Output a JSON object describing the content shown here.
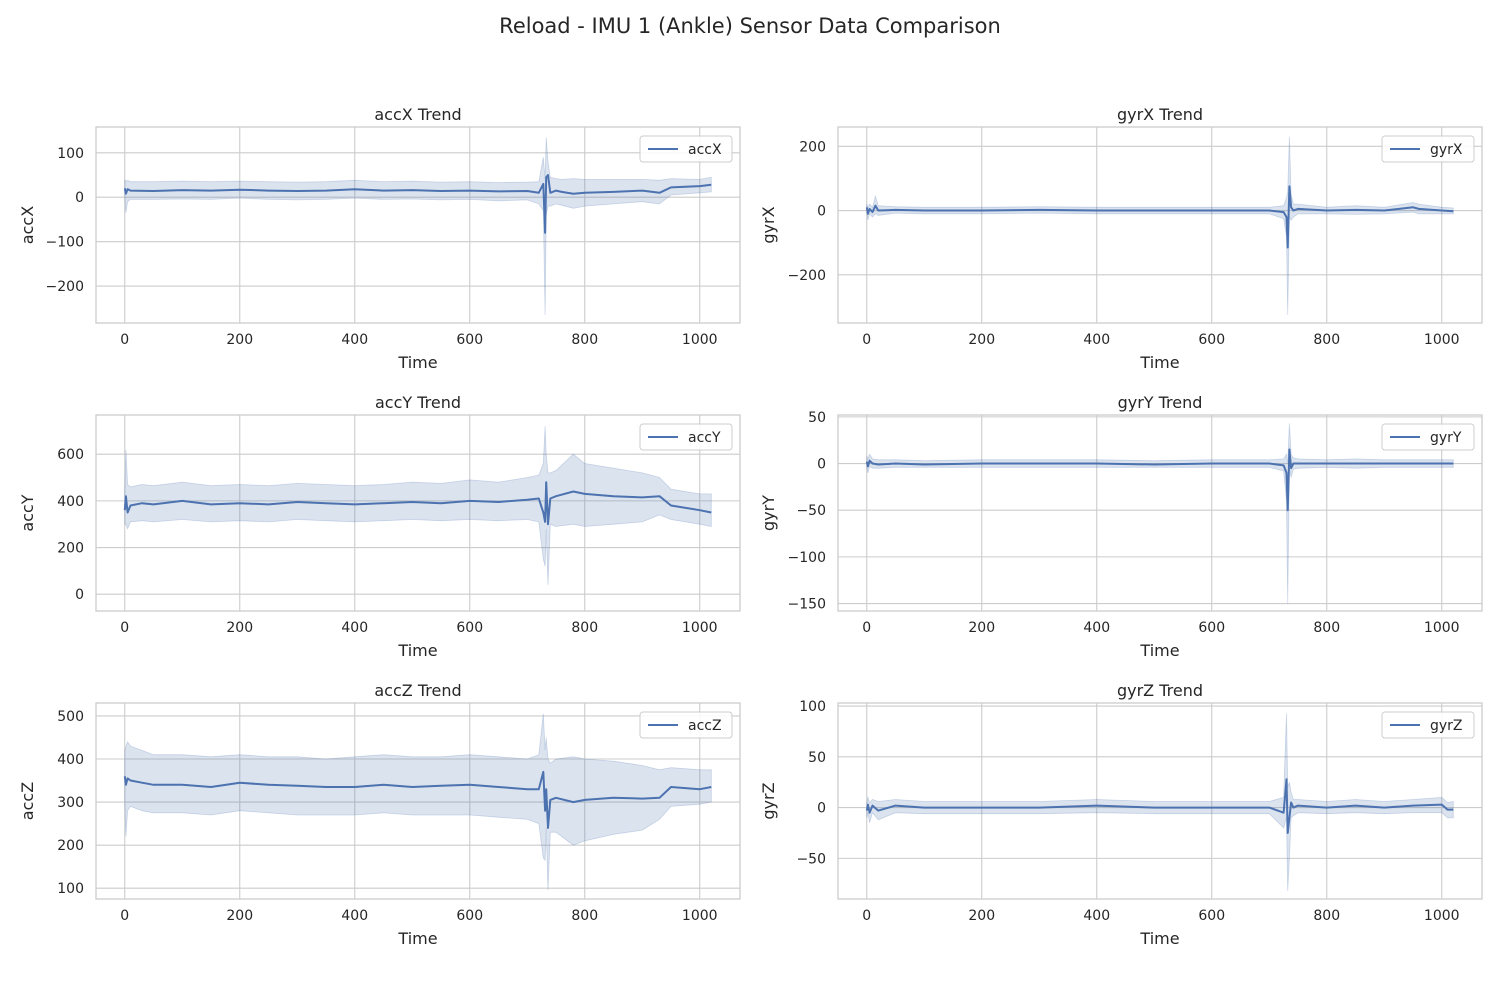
{
  "suptitle": "Reload - IMU 1 (Ankle) Sensor Data Comparison",
  "colors": {
    "line": "#4c72b0",
    "band": "#4c72b0",
    "grid": "#cccccc",
    "axes_edge": "#cccccc",
    "text": "#262626"
  },
  "chart_data": [
    {
      "type": "line",
      "title": "accX Trend",
      "xlabel": "Time",
      "ylabel": "accX",
      "legend": {
        "label": "accX",
        "position": "top-right"
      },
      "xlim": [
        -50,
        1070
      ],
      "ylim": [
        -283,
        158
      ],
      "xticks": [
        0,
        200,
        400,
        600,
        800,
        1000
      ],
      "xtick_labels": [
        "0",
        "200",
        "400",
        "600",
        "800",
        "1000"
      ],
      "yticks": [
        -200,
        -100,
        0,
        100
      ],
      "ytick_labels": [
        "−200",
        "−100",
        "0",
        "100"
      ],
      "grid": true,
      "series": [
        {
          "x": [
            0,
            2,
            5,
            10,
            50,
            100,
            150,
            200,
            250,
            300,
            350,
            400,
            450,
            500,
            550,
            600,
            650,
            700,
            720,
            728,
            731,
            733,
            736,
            740,
            750,
            760,
            780,
            800,
            850,
            900,
            930,
            950,
            1000,
            1020
          ],
          "mean": [
            20,
            8,
            18,
            15,
            14,
            16,
            15,
            17,
            15,
            14,
            15,
            18,
            15,
            16,
            14,
            15,
            13,
            14,
            10,
            30,
            -80,
            45,
            50,
            10,
            15,
            12,
            8,
            10,
            12,
            15,
            10,
            22,
            25,
            28
          ],
          "upper": [
            40,
            35,
            38,
            35,
            35,
            36,
            35,
            36,
            35,
            34,
            35,
            38,
            35,
            36,
            34,
            35,
            33,
            34,
            35,
            90,
            40,
            135,
            80,
            45,
            42,
            40,
            42,
            40,
            40,
            40,
            38,
            42,
            40,
            45
          ],
          "lower": [
            0,
            -35,
            -10,
            -5,
            -5,
            -4,
            -5,
            -2,
            -5,
            -6,
            -5,
            -2,
            -5,
            -4,
            -6,
            -5,
            -8,
            -6,
            -15,
            -30,
            -265,
            -40,
            -20,
            -20,
            -15,
            -18,
            -25,
            -20,
            -15,
            -10,
            -15,
            5,
            10,
            12
          ]
        }
      ]
    },
    {
      "type": "line",
      "title": "gyrX Trend",
      "xlabel": "Time",
      "ylabel": "gyrX",
      "legend": {
        "label": "gyrX",
        "position": "top-right"
      },
      "xlim": [
        -50,
        1070
      ],
      "ylim": [
        -350,
        260
      ],
      "xticks": [
        0,
        200,
        400,
        600,
        800,
        1000
      ],
      "xtick_labels": [
        "0",
        "200",
        "400",
        "600",
        "800",
        "1000"
      ],
      "yticks": [
        -200,
        0,
        200
      ],
      "ytick_labels": [
        "−200",
        "0",
        "200"
      ],
      "grid": true,
      "series": [
        {
          "x": [
            0,
            2,
            5,
            10,
            15,
            20,
            50,
            100,
            200,
            300,
            400,
            500,
            600,
            700,
            725,
            730,
            732,
            735,
            738,
            742,
            750,
            800,
            850,
            900,
            950,
            960,
            1000,
            1020
          ],
          "mean": [
            10,
            -10,
            5,
            -5,
            15,
            0,
            2,
            0,
            0,
            2,
            0,
            0,
            0,
            0,
            -5,
            -20,
            -115,
            75,
            10,
            0,
            5,
            0,
            2,
            0,
            10,
            5,
            0,
            -2
          ],
          "upper": [
            20,
            10,
            20,
            10,
            45,
            15,
            12,
            10,
            10,
            12,
            10,
            10,
            10,
            10,
            15,
            40,
            60,
            230,
            50,
            20,
            20,
            10,
            15,
            10,
            25,
            20,
            10,
            8
          ],
          "lower": [
            0,
            -30,
            -10,
            -20,
            -10,
            -15,
            -8,
            -10,
            -10,
            -8,
            -10,
            -10,
            -10,
            -10,
            -25,
            -80,
            -325,
            -20,
            -30,
            -20,
            -10,
            -10,
            -12,
            -10,
            -5,
            -10,
            -10,
            -10
          ]
        }
      ]
    },
    {
      "type": "line",
      "title": "accY Trend",
      "xlabel": "Time",
      "ylabel": "accY",
      "legend": {
        "label": "accY",
        "position": "top-right"
      },
      "xlim": [
        -50,
        1070
      ],
      "ylim": [
        -72,
        768
      ],
      "xticks": [
        0,
        200,
        400,
        600,
        800,
        1000
      ],
      "xtick_labels": [
        "0",
        "200",
        "400",
        "600",
        "800",
        "1000"
      ],
      "yticks": [
        0,
        200,
        400,
        600
      ],
      "ytick_labels": [
        "0",
        "200",
        "400",
        "600"
      ],
      "grid": true,
      "series": [
        {
          "x": [
            0,
            2,
            5,
            10,
            30,
            50,
            100,
            150,
            200,
            250,
            300,
            350,
            400,
            450,
            500,
            550,
            600,
            650,
            700,
            720,
            728,
            731,
            733,
            736,
            740,
            750,
            780,
            800,
            850,
            900,
            930,
            950,
            1000,
            1020
          ],
          "mean": [
            360,
            420,
            350,
            380,
            390,
            385,
            400,
            385,
            390,
            385,
            395,
            390,
            385,
            390,
            395,
            390,
            400,
            395,
            405,
            410,
            350,
            310,
            480,
            300,
            410,
            420,
            440,
            430,
            420,
            415,
            420,
            380,
            360,
            350
          ],
          "upper": [
            450,
            620,
            470,
            460,
            470,
            465,
            480,
            465,
            470,
            465,
            475,
            470,
            465,
            470,
            480,
            475,
            490,
            480,
            500,
            510,
            560,
            720,
            600,
            520,
            520,
            530,
            600,
            560,
            540,
            520,
            500,
            450,
            430,
            430
          ],
          "lower": [
            300,
            300,
            280,
            310,
            315,
            310,
            320,
            310,
            315,
            310,
            320,
            315,
            310,
            315,
            320,
            315,
            320,
            315,
            320,
            310,
            150,
            120,
            280,
            40,
            300,
            290,
            300,
            290,
            300,
            310,
            340,
            320,
            300,
            290
          ]
        }
      ]
    },
    {
      "type": "line",
      "title": "gyrY Trend",
      "xlabel": "Time",
      "ylabel": "gyrY",
      "legend": {
        "label": "gyrY",
        "position": "top-right"
      },
      "xlim": [
        -50,
        1070
      ],
      "ylim": [
        -158,
        52
      ],
      "xticks": [
        0,
        200,
        400,
        600,
        800,
        1000
      ],
      "xtick_labels": [
        "0",
        "200",
        "400",
        "600",
        "800",
        "1000"
      ],
      "yticks": [
        -150,
        -100,
        -50,
        0,
        50
      ],
      "ytick_labels": [
        "−150",
        "−100",
        "−50",
        "0",
        "50"
      ],
      "grid": true,
      "series": [
        {
          "x": [
            0,
            2,
            5,
            10,
            20,
            50,
            100,
            200,
            300,
            400,
            500,
            600,
            700,
            725,
            730,
            732,
            735,
            738,
            742,
            750,
            800,
            850,
            900,
            1000,
            1020
          ],
          "mean": [
            2,
            -3,
            3,
            0,
            -1,
            0,
            -1,
            0,
            0,
            0,
            -1,
            0,
            0,
            -2,
            -10,
            -50,
            15,
            -5,
            0,
            0,
            0,
            0,
            0,
            0,
            0
          ],
          "upper": [
            8,
            5,
            10,
            5,
            4,
            4,
            3,
            4,
            4,
            4,
            3,
            4,
            4,
            5,
            10,
            0,
            43,
            10,
            6,
            5,
            4,
            5,
            4,
            4,
            4
          ],
          "lower": [
            -4,
            -10,
            -3,
            -5,
            -5,
            -4,
            -4,
            -4,
            -4,
            -4,
            -4,
            -4,
            -4,
            -8,
            -40,
            -150,
            -5,
            -15,
            -6,
            -5,
            -4,
            -5,
            -4,
            -4,
            -4
          ]
        }
      ]
    },
    {
      "type": "line",
      "title": "accZ Trend",
      "xlabel": "Time",
      "ylabel": "accZ",
      "legend": {
        "label": "accZ",
        "position": "top-right"
      },
      "xlim": [
        -50,
        1070
      ],
      "ylim": [
        75,
        530
      ],
      "xticks": [
        0,
        200,
        400,
        600,
        800,
        1000
      ],
      "xtick_labels": [
        "0",
        "200",
        "400",
        "600",
        "800",
        "1000"
      ],
      "yticks": [
        100,
        200,
        300,
        400,
        500
      ],
      "ytick_labels": [
        "100",
        "200",
        "300",
        "400",
        "500"
      ],
      "grid": true,
      "series": [
        {
          "x": [
            0,
            2,
            5,
            10,
            30,
            50,
            100,
            150,
            200,
            250,
            300,
            350,
            400,
            450,
            500,
            550,
            600,
            650,
            700,
            720,
            728,
            731,
            733,
            736,
            740,
            750,
            780,
            800,
            850,
            900,
            930,
            950,
            1000,
            1020
          ],
          "mean": [
            360,
            340,
            355,
            350,
            345,
            340,
            340,
            335,
            345,
            340,
            338,
            335,
            335,
            340,
            335,
            338,
            340,
            335,
            330,
            330,
            370,
            280,
            330,
            240,
            305,
            310,
            300,
            305,
            310,
            308,
            310,
            335,
            330,
            335
          ],
          "upper": [
            420,
            430,
            440,
            430,
            420,
            410,
            410,
            405,
            410,
            405,
            405,
            400,
            405,
            410,
            405,
            405,
            410,
            405,
            400,
            410,
            505,
            420,
            450,
            400,
            390,
            400,
            405,
            400,
            395,
            385,
            375,
            380,
            375,
            375
          ],
          "lower": [
            300,
            220,
            280,
            290,
            280,
            275,
            275,
            270,
            280,
            275,
            270,
            270,
            270,
            275,
            270,
            270,
            270,
            265,
            260,
            250,
            170,
            165,
            240,
            95,
            230,
            230,
            200,
            210,
            225,
            235,
            260,
            290,
            295,
            300
          ]
        }
      ]
    },
    {
      "type": "line",
      "title": "gyrZ Trend",
      "xlabel": "Time",
      "ylabel": "gyrZ",
      "legend": {
        "label": "gyrZ",
        "position": "top-right"
      },
      "xlim": [
        -50,
        1070
      ],
      "ylim": [
        -90,
        103
      ],
      "xticks": [
        0,
        200,
        400,
        600,
        800,
        1000
      ],
      "xtick_labels": [
        "0",
        "200",
        "400",
        "600",
        "800",
        "1000"
      ],
      "yticks": [
        -50,
        0,
        50,
        100
      ],
      "ytick_labels": [
        "−50",
        "0",
        "50",
        "100"
      ],
      "grid": true,
      "series": [
        {
          "x": [
            0,
            2,
            5,
            10,
            20,
            50,
            100,
            200,
            300,
            400,
            500,
            600,
            700,
            725,
            730,
            732,
            735,
            738,
            742,
            750,
            800,
            850,
            900,
            950,
            1000,
            1010,
            1020
          ],
          "mean": [
            -3,
            3,
            -5,
            2,
            -3,
            2,
            0,
            0,
            0,
            2,
            0,
            0,
            0,
            -5,
            28,
            -25,
            -10,
            5,
            0,
            2,
            0,
            2,
            0,
            2,
            3,
            -2,
            -2
          ],
          "upper": [
            5,
            10,
            5,
            8,
            6,
            8,
            6,
            6,
            6,
            8,
            6,
            6,
            6,
            10,
            93,
            20,
            25,
            15,
            8,
            8,
            6,
            8,
            6,
            8,
            10,
            5,
            6
          ],
          "lower": [
            -10,
            -5,
            -15,
            -5,
            -12,
            -5,
            -6,
            -6,
            -6,
            -5,
            -6,
            -6,
            -6,
            -20,
            -10,
            -82,
            -50,
            -10,
            -8,
            -5,
            -6,
            -5,
            -6,
            -5,
            -5,
            -10,
            -10
          ]
        }
      ]
    }
  ]
}
